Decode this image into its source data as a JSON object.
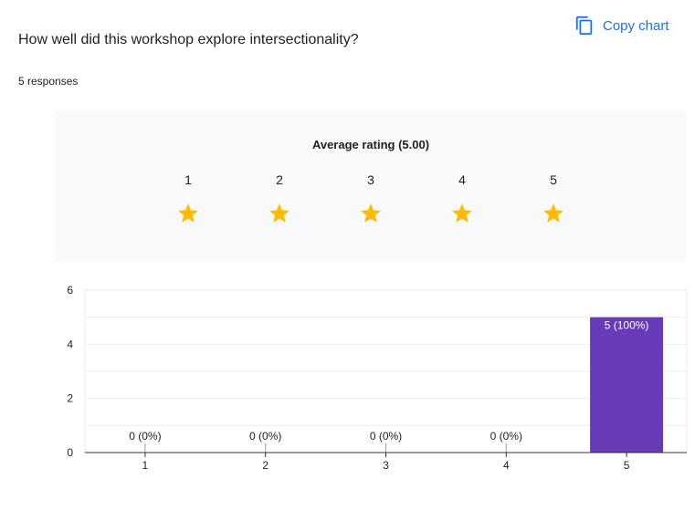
{
  "question": {
    "title": "How well did this workshop explore intersectionality?",
    "response_count": "5 responses"
  },
  "toolbar": {
    "copy_chart_label": "Copy chart",
    "copy_icon": "copy-icon"
  },
  "rating": {
    "title": "Average rating (5.00)",
    "labels": [
      "1",
      "2",
      "3",
      "4",
      "5"
    ],
    "filled_stars": 5,
    "star_color": "#fbbc04"
  },
  "chart_data": {
    "type": "bar",
    "categories": [
      "1",
      "2",
      "3",
      "4",
      "5"
    ],
    "values": [
      0,
      0,
      0,
      0,
      5
    ],
    "data_labels": [
      "0 (0%)",
      "0 (0%)",
      "0 (0%)",
      "0 (0%)",
      "5 (100%)"
    ],
    "yticks": [
      0,
      2,
      4,
      6
    ],
    "ylim": [
      0,
      6
    ],
    "bar_color": "#673ab7",
    "grid": true,
    "title": "",
    "xlabel": "",
    "ylabel": ""
  }
}
